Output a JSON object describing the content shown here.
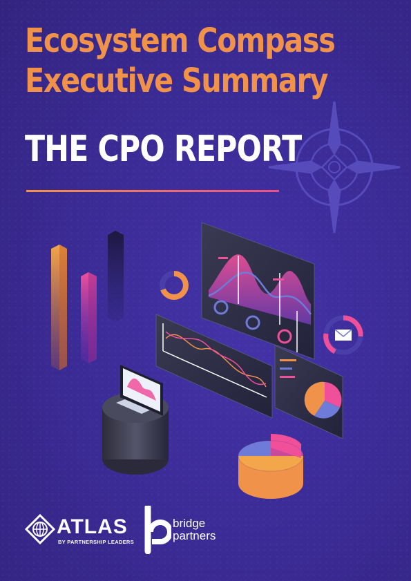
{
  "cover": {
    "title_line1": "Ecosystem Compass",
    "title_line2": "Executive Summary",
    "subtitle": "THE CPO REPORT"
  },
  "logos": {
    "atlas": {
      "name": "ATLAS",
      "tagline": "BY PARTNERSHIP LEADERS"
    },
    "bridge": {
      "line1": "bridge",
      "line2": "partners"
    }
  },
  "colors": {
    "background": "#3a2a93",
    "accent_orange": "#f0924a",
    "accent_pink": "#e8508a",
    "text_white": "#ffffff"
  },
  "icons": [
    "compass-icon",
    "dashboard-illustration",
    "atlas-logo-icon",
    "bridge-partners-logo-icon"
  ]
}
